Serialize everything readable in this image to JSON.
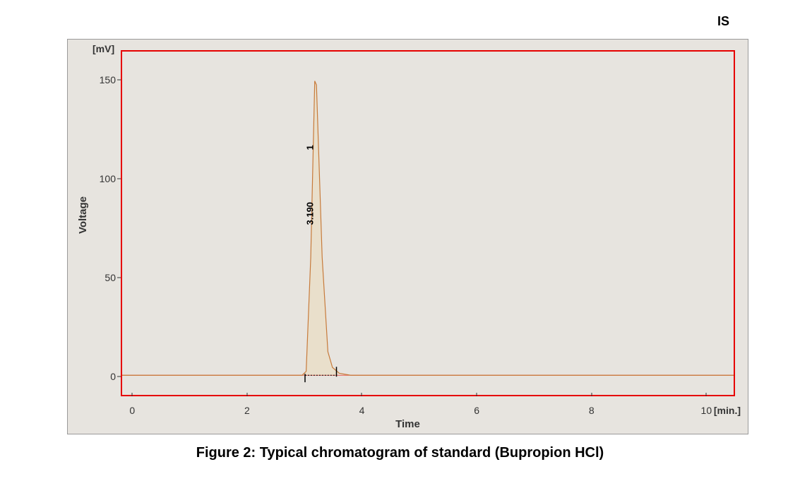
{
  "top_right_label": "IS",
  "caption": "Figure 2: Typical chromatogram of standard (Bupropion HCl)",
  "chart": {
    "type": "line",
    "background_color": "#e7e4df",
    "border_color": "#e60000",
    "border_width": 2,
    "x_axis": {
      "label": "Time",
      "unit": "[min.]",
      "min": -0.2,
      "max": 10.5,
      "ticks": [
        0,
        2,
        4,
        6,
        8,
        10
      ],
      "label_fontsize": 15,
      "tick_fontsize": 14
    },
    "y_axis": {
      "label": "Voltage",
      "unit": "[mV]",
      "min": -10,
      "max": 165,
      "ticks": [
        0,
        50,
        100,
        150
      ],
      "label_fontsize": 15,
      "tick_fontsize": 14
    },
    "baseline_color": "#e85a4f",
    "baseline_width": 1,
    "peak_line_color": "#c77a3a",
    "peak_line_width": 1.2,
    "peak_fill_color": "#f0d090",
    "peak_fill_opacity": 0.25,
    "integration_marker_color": "#000000",
    "series": [
      {
        "x": -0.2,
        "y": 0
      },
      {
        "x": 2.95,
        "y": 0
      },
      {
        "x": 3.02,
        "y": 2
      },
      {
        "x": 3.1,
        "y": 60
      },
      {
        "x": 3.17,
        "y": 150
      },
      {
        "x": 3.2,
        "y": 148
      },
      {
        "x": 3.3,
        "y": 60
      },
      {
        "x": 3.4,
        "y": 12
      },
      {
        "x": 3.48,
        "y": 4
      },
      {
        "x": 3.6,
        "y": 1
      },
      {
        "x": 3.8,
        "y": 0
      },
      {
        "x": 10.5,
        "y": 0
      }
    ],
    "peak": {
      "retention_time": "3.190",
      "peak_number": "1",
      "start_x": 3.0,
      "end_x": 3.55,
      "label_fontsize": 13
    }
  }
}
